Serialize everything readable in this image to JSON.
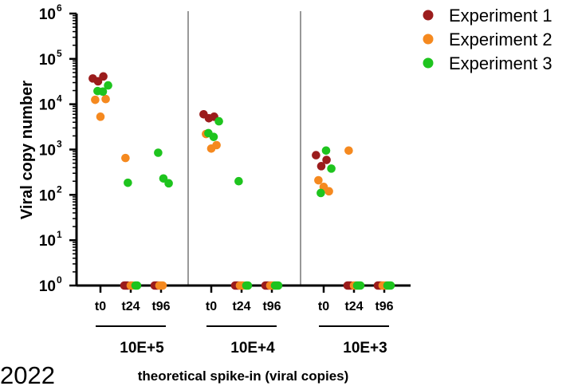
{
  "chart_data": {
    "type": "scatter",
    "title": "",
    "ylabel": "Viral copy number",
    "xlabel": "theoretical spike-in (viral copies)",
    "corner_text": "2022",
    "y_scale": "log",
    "ylim": [
      1,
      1000000
    ],
    "y_ticks": [
      {
        "value": 1,
        "base": "10",
        "exp": "0"
      },
      {
        "value": 10,
        "base": "10",
        "exp": "1"
      },
      {
        "value": 100,
        "base": "10",
        "exp": "2"
      },
      {
        "value": 1000,
        "base": "10",
        "exp": "3"
      },
      {
        "value": 10000,
        "base": "10",
        "exp": "4"
      },
      {
        "value": 100000,
        "base": "10",
        "exp": "5"
      },
      {
        "value": 1000000,
        "base": "10",
        "exp": "6"
      }
    ],
    "categories": [
      "t0",
      "t24",
      "t96"
    ],
    "groups": [
      "10E+5",
      "10E+4",
      "10E+3"
    ],
    "grid": false,
    "legend_position": "top-right",
    "series": [
      {
        "name": "Experiment 1",
        "color": "#9b1c1c",
        "points": [
          {
            "group": "10E+5",
            "x": "t0",
            "y": 37000
          },
          {
            "group": "10E+5",
            "x": "t0",
            "y": 32000
          },
          {
            "group": "10E+5",
            "x": "t0",
            "y": 41000
          },
          {
            "group": "10E+5",
            "x": "t24",
            "y": 1
          },
          {
            "group": "10E+5",
            "x": "t24",
            "y": 1
          },
          {
            "group": "10E+5",
            "x": "t24",
            "y": 1
          },
          {
            "group": "10E+5",
            "x": "t96",
            "y": 1
          },
          {
            "group": "10E+5",
            "x": "t96",
            "y": 1
          },
          {
            "group": "10E+5",
            "x": "t96",
            "y": 1
          },
          {
            "group": "10E+4",
            "x": "t0",
            "y": 6000
          },
          {
            "group": "10E+4",
            "x": "t0",
            "y": 4900
          },
          {
            "group": "10E+4",
            "x": "t0",
            "y": 5300
          },
          {
            "group": "10E+4",
            "x": "t24",
            "y": 1
          },
          {
            "group": "10E+4",
            "x": "t24",
            "y": 1
          },
          {
            "group": "10E+4",
            "x": "t24",
            "y": 1
          },
          {
            "group": "10E+4",
            "x": "t96",
            "y": 1
          },
          {
            "group": "10E+4",
            "x": "t96",
            "y": 1
          },
          {
            "group": "10E+4",
            "x": "t96",
            "y": 1
          },
          {
            "group": "10E+3",
            "x": "t0",
            "y": 750
          },
          {
            "group": "10E+3",
            "x": "t0",
            "y": 430
          },
          {
            "group": "10E+3",
            "x": "t0",
            "y": 590
          },
          {
            "group": "10E+3",
            "x": "t24",
            "y": 1
          },
          {
            "group": "10E+3",
            "x": "t24",
            "y": 1
          },
          {
            "group": "10E+3",
            "x": "t24",
            "y": 1
          },
          {
            "group": "10E+3",
            "x": "t96",
            "y": 1
          },
          {
            "group": "10E+3",
            "x": "t96",
            "y": 1
          },
          {
            "group": "10E+3",
            "x": "t96",
            "y": 1
          }
        ]
      },
      {
        "name": "Experiment 2",
        "color": "#f5891f",
        "points": [
          {
            "group": "10E+5",
            "x": "t0",
            "y": 12500
          },
          {
            "group": "10E+5",
            "x": "t0",
            "y": 5300
          },
          {
            "group": "10E+5",
            "x": "t0",
            "y": 13000
          },
          {
            "group": "10E+5",
            "x": "t24",
            "y": 650
          },
          {
            "group": "10E+5",
            "x": "t24",
            "y": 1
          },
          {
            "group": "10E+5",
            "x": "t24",
            "y": 1
          },
          {
            "group": "10E+5",
            "x": "t96",
            "y": 1
          },
          {
            "group": "10E+5",
            "x": "t96",
            "y": 1
          },
          {
            "group": "10E+5",
            "x": "t96",
            "y": 1
          },
          {
            "group": "10E+4",
            "x": "t0",
            "y": 2200
          },
          {
            "group": "10E+4",
            "x": "t0",
            "y": 1050
          },
          {
            "group": "10E+4",
            "x": "t0",
            "y": 1250
          },
          {
            "group": "10E+4",
            "x": "t24",
            "y": 1
          },
          {
            "group": "10E+4",
            "x": "t24",
            "y": 1
          },
          {
            "group": "10E+4",
            "x": "t24",
            "y": 1
          },
          {
            "group": "10E+4",
            "x": "t96",
            "y": 1
          },
          {
            "group": "10E+4",
            "x": "t96",
            "y": 1
          },
          {
            "group": "10E+4",
            "x": "t96",
            "y": 1
          },
          {
            "group": "10E+3",
            "x": "t0",
            "y": 210
          },
          {
            "group": "10E+3",
            "x": "t0",
            "y": 150
          },
          {
            "group": "10E+3",
            "x": "t0",
            "y": 120
          },
          {
            "group": "10E+3",
            "x": "t24",
            "y": 950
          },
          {
            "group": "10E+3",
            "x": "t24",
            "y": 1
          },
          {
            "group": "10E+3",
            "x": "t24",
            "y": 1
          },
          {
            "group": "10E+3",
            "x": "t96",
            "y": 1
          },
          {
            "group": "10E+3",
            "x": "t96",
            "y": 1
          },
          {
            "group": "10E+3",
            "x": "t96",
            "y": 1
          }
        ]
      },
      {
        "name": "Experiment 3",
        "color": "#1ec41e",
        "points": [
          {
            "group": "10E+5",
            "x": "t0",
            "y": 19500
          },
          {
            "group": "10E+5",
            "x": "t0",
            "y": 19000
          },
          {
            "group": "10E+5",
            "x": "t0",
            "y": 26000
          },
          {
            "group": "10E+5",
            "x": "t24",
            "y": 185
          },
          {
            "group": "10E+5",
            "x": "t24",
            "y": 1
          },
          {
            "group": "10E+5",
            "x": "t24",
            "y": 1
          },
          {
            "group": "10E+5",
            "x": "t96",
            "y": 850
          },
          {
            "group": "10E+5",
            "x": "t96",
            "y": 230
          },
          {
            "group": "10E+5",
            "x": "t96",
            "y": 180
          },
          {
            "group": "10E+4",
            "x": "t0",
            "y": 2300
          },
          {
            "group": "10E+4",
            "x": "t0",
            "y": 1900
          },
          {
            "group": "10E+4",
            "x": "t0",
            "y": 4200
          },
          {
            "group": "10E+4",
            "x": "t24",
            "y": 200
          },
          {
            "group": "10E+4",
            "x": "t24",
            "y": 1
          },
          {
            "group": "10E+4",
            "x": "t24",
            "y": 1
          },
          {
            "group": "10E+4",
            "x": "t96",
            "y": 1
          },
          {
            "group": "10E+4",
            "x": "t96",
            "y": 1
          },
          {
            "group": "10E+4",
            "x": "t96",
            "y": 1
          },
          {
            "group": "10E+3",
            "x": "t0",
            "y": 110
          },
          {
            "group": "10E+3",
            "x": "t0",
            "y": 950
          },
          {
            "group": "10E+3",
            "x": "t0",
            "y": 380
          },
          {
            "group": "10E+3",
            "x": "t24",
            "y": 1
          },
          {
            "group": "10E+3",
            "x": "t24",
            "y": 1
          },
          {
            "group": "10E+3",
            "x": "t24",
            "y": 1
          },
          {
            "group": "10E+3",
            "x": "t96",
            "y": 1
          },
          {
            "group": "10E+3",
            "x": "t96",
            "y": 1
          },
          {
            "group": "10E+3",
            "x": "t96",
            "y": 1
          }
        ]
      }
    ]
  }
}
